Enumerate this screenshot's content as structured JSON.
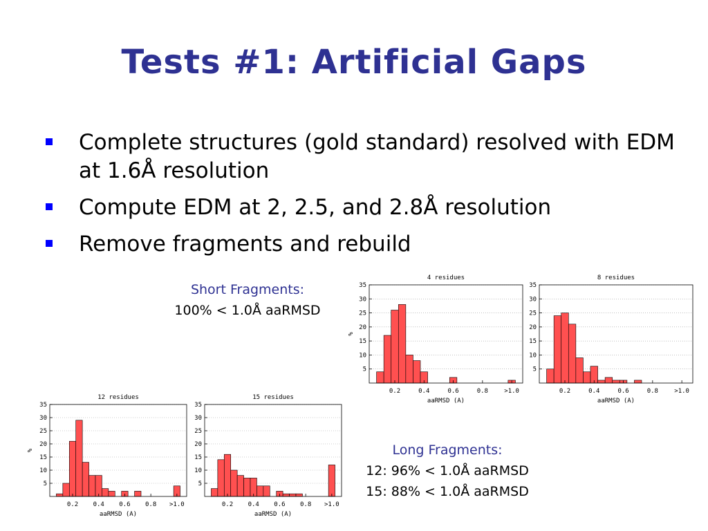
{
  "slide": {
    "title": "Tests #1: Artificial Gaps",
    "bullets": [
      "Complete structures (gold standard) resolved with EDM at 1.6Å resolution",
      "Compute EDM at 2, 2.5, and 2.8Å resolution",
      "Remove fragments and rebuild"
    ],
    "short_note": {
      "heading": "Short Fragments:",
      "line1": "100% < 1.0Å aaRMSD"
    },
    "long_note": {
      "heading": "Long Fragments:",
      "line1": "12: 96% < 1.0Å aaRMSD",
      "line2": "15: 88% < 1.0Å aaRMSD"
    }
  },
  "colors": {
    "title": "#2e3192",
    "bullet": "#0000ff",
    "bar": "#ff5050",
    "note_heading": "#2e3192"
  },
  "chart_data": [
    {
      "type": "bar",
      "title": "4 residues",
      "xlabel": "aaRMSD (A)",
      "ylabel": "%",
      "categories": [
        "0.1",
        "0.15",
        "0.2",
        "0.25",
        "0.3",
        "0.35",
        "0.4",
        "0.45",
        "0.5",
        "0.55",
        "0.6",
        "0.65",
        "0.7",
        "0.75",
        "0.8",
        "0.85",
        "0.9",
        "0.95",
        ">1.0"
      ],
      "values": [
        4,
        17,
        26,
        28,
        10,
        8,
        4,
        0,
        0,
        0,
        2,
        0,
        0,
        0,
        0,
        0,
        0,
        0,
        1
      ],
      "xticks": [
        "0.2",
        "0.4",
        "0.6",
        "0.8",
        ">1.0"
      ],
      "yticks": [
        5,
        10,
        15,
        20,
        25,
        30,
        35
      ],
      "ylim": [
        0,
        35
      ],
      "grid": true
    },
    {
      "type": "bar",
      "title": "8 residues",
      "xlabel": "aaRMSD (A)",
      "ylabel": "",
      "categories": [
        "0.1",
        "0.15",
        "0.2",
        "0.25",
        "0.3",
        "0.35",
        "0.4",
        "0.45",
        "0.5",
        "0.55",
        "0.6",
        "0.65",
        "0.7",
        "0.75",
        "0.8",
        "0.85",
        "0.9",
        "0.95",
        ">1.0"
      ],
      "values": [
        5,
        24,
        25,
        21,
        9,
        4,
        6,
        1,
        2,
        1,
        1,
        0,
        1,
        0,
        0,
        0,
        0,
        0,
        0
      ],
      "xticks": [
        "0.2",
        "0.4",
        "0.6",
        "0.8",
        ">1.0"
      ],
      "yticks": [
        5,
        10,
        15,
        20,
        25,
        30,
        35
      ],
      "ylim": [
        0,
        35
      ],
      "grid": true
    },
    {
      "type": "bar",
      "title": "12 residues",
      "xlabel": "aaRMSD (A)",
      "ylabel": "%",
      "categories": [
        "0.1",
        "0.15",
        "0.2",
        "0.25",
        "0.3",
        "0.35",
        "0.4",
        "0.45",
        "0.5",
        "0.55",
        "0.6",
        "0.65",
        "0.7",
        "0.75",
        "0.8",
        "0.85",
        "0.9",
        "0.95",
        ">1.0"
      ],
      "values": [
        1,
        5,
        21,
        29,
        13,
        8,
        8,
        3,
        2,
        0,
        2,
        0,
        2,
        0,
        0,
        0,
        0,
        0,
        4
      ],
      "xticks": [
        "0.2",
        "0.4",
        "0.6",
        "0.8",
        ">1.0"
      ],
      "yticks": [
        5,
        10,
        15,
        20,
        25,
        30,
        35
      ],
      "ylim": [
        0,
        35
      ],
      "grid": true
    },
    {
      "type": "bar",
      "title": "15 residues",
      "xlabel": "aaRMSD (A)",
      "ylabel": "",
      "categories": [
        "0.1",
        "0.15",
        "0.2",
        "0.25",
        "0.3",
        "0.35",
        "0.4",
        "0.45",
        "0.5",
        "0.55",
        "0.6",
        "0.65",
        "0.7",
        "0.75",
        "0.8",
        "0.85",
        "0.9",
        "0.95",
        ">1.0"
      ],
      "values": [
        3,
        14,
        16,
        10,
        8,
        7,
        7,
        4,
        4,
        0,
        2,
        1,
        1,
        1,
        0,
        0,
        0,
        0,
        12
      ],
      "xticks": [
        "0.2",
        "0.4",
        "0.6",
        "0.8",
        ">1.0"
      ],
      "yticks": [
        5,
        10,
        15,
        20,
        25,
        30,
        35
      ],
      "ylim": [
        0,
        35
      ],
      "grid": true
    }
  ]
}
